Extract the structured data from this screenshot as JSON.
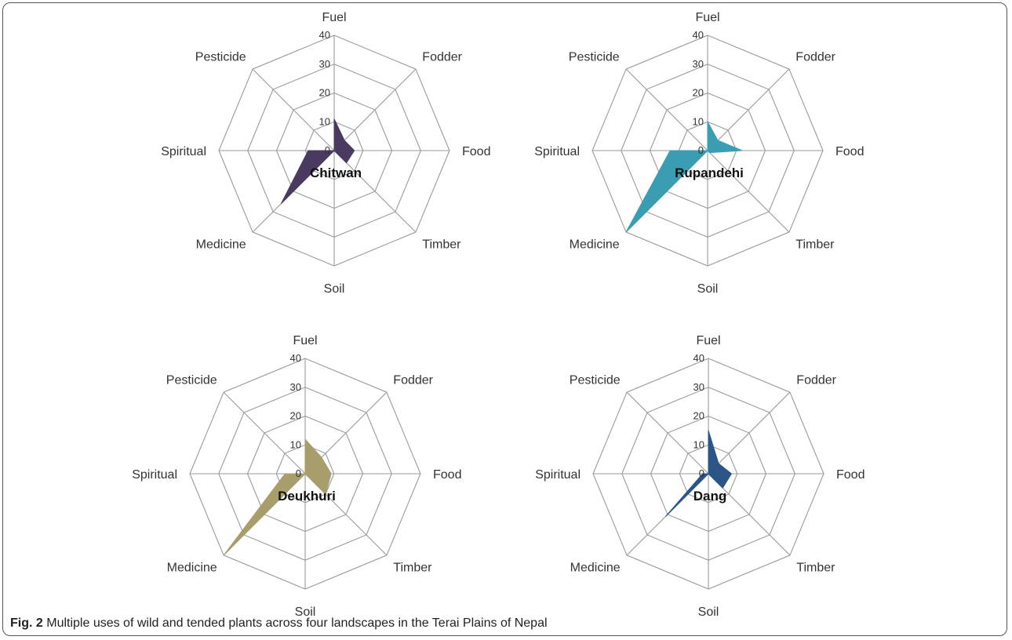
{
  "caption": {
    "label": "Fig. 2",
    "text": "Multiple uses of wild and tended plants across four landscapes in the Terai Plains of Nepal"
  },
  "colors": {
    "Chitwan": "#4a3a62",
    "Rupandehi": "#3a9db2",
    "Deukhuri": "#a89e6c",
    "Dang": "#2b5587",
    "grid": "#9a9a9a",
    "label_text": "#333333"
  },
  "chart_data": [
    {
      "type": "radar",
      "series_name": "Chitwan",
      "axes": [
        "Fuel",
        "Fodder",
        "Food",
        "Timber",
        "Soil",
        "Medicine",
        "Spiritual",
        "Pesticide"
      ],
      "values": [
        11,
        5,
        7,
        6,
        0,
        26,
        9,
        0
      ],
      "rlim": [
        0,
        40
      ],
      "ticks": [
        0,
        10,
        20,
        30,
        40
      ]
    },
    {
      "type": "radar",
      "series_name": "Rupandehi",
      "axes": [
        "Fuel",
        "Fodder",
        "Food",
        "Timber",
        "Soil",
        "Medicine",
        "Spiritual",
        "Pesticide"
      ],
      "values": [
        10,
        5,
        12,
        1,
        0,
        40,
        13,
        0
      ],
      "rlim": [
        0,
        40
      ],
      "ticks": [
        0,
        10,
        20,
        30,
        40
      ]
    },
    {
      "type": "radar",
      "series_name": "Deukhuri",
      "axes": [
        "Fuel",
        "Fodder",
        "Food",
        "Timber",
        "Soil",
        "Medicine",
        "Spiritual",
        "Pesticide"
      ],
      "values": [
        12,
        8,
        9,
        10,
        0,
        40,
        7,
        0
      ],
      "rlim": [
        0,
        40
      ],
      "ticks": [
        0,
        10,
        20,
        30,
        40
      ]
    },
    {
      "type": "radar",
      "series_name": "Dang",
      "axes": [
        "Fuel",
        "Fodder",
        "Food",
        "Timber",
        "Soil",
        "Medicine",
        "Spiritual",
        "Pesticide"
      ],
      "values": [
        15,
        5,
        8,
        7,
        0,
        21,
        2,
        0
      ],
      "rlim": [
        0,
        40
      ],
      "ticks": [
        0,
        10,
        20,
        30,
        40
      ]
    }
  ]
}
